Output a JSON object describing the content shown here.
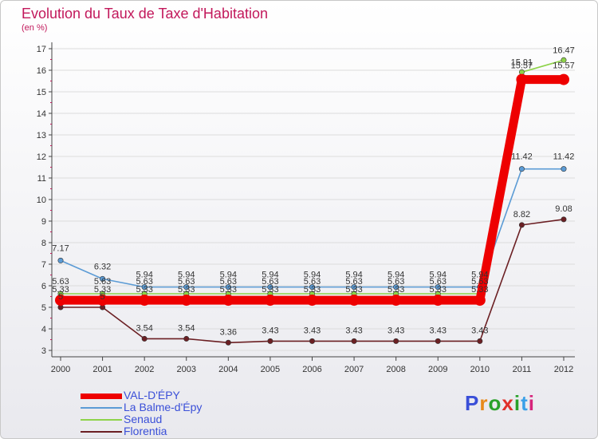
{
  "chart_data": {
    "type": "line",
    "title": "Evolution du Taux de Taxe d'Habitation",
    "subtitle": "(en %)",
    "categories": [
      "2000",
      "2001",
      "2002",
      "2003",
      "2004",
      "2005",
      "2006",
      "2007",
      "2008",
      "2009",
      "2010",
      "2011",
      "2012"
    ],
    "ylim": [
      3,
      17
    ],
    "yticks": [
      "3",
      "4",
      "5",
      "6",
      "7",
      "8",
      "9",
      "10",
      "11",
      "12",
      "13",
      "14",
      "15",
      "16",
      "17"
    ],
    "series": [
      {
        "name": "VAL-D'ÉPY",
        "color": "#ee0000",
        "values": [
          5.33,
          5.33,
          5.33,
          5.33,
          5.33,
          5.33,
          5.33,
          5.33,
          5.33,
          5.33,
          5.33,
          15.57,
          15.57
        ],
        "labels": [
          "5.33",
          "5.33",
          "5.33",
          "5.33",
          "5.33",
          "5.33",
          "5.33",
          "5.33",
          "5.33",
          "5.33",
          "5.33",
          "15.57",
          "15.57"
        ]
      },
      {
        "name": "La Balme-d'Épy",
        "color": "#5b9bd5",
        "values": [
          7.17,
          6.32,
          5.94,
          5.94,
          5.94,
          5.94,
          5.94,
          5.94,
          5.94,
          5.94,
          5.94,
          11.42,
          11.42
        ],
        "labels": [
          "7.17",
          "6.32",
          "5.94",
          "5.94",
          "5.94",
          "5.94",
          "5.94",
          "5.94",
          "5.94",
          "5.94",
          "5.94",
          "11.42",
          "11.42"
        ]
      },
      {
        "name": "Senaud",
        "color": "#8ed34a",
        "values": [
          5.63,
          5.63,
          5.63,
          5.63,
          5.63,
          5.63,
          5.63,
          5.63,
          5.63,
          5.63,
          5.63,
          15.91,
          16.47
        ],
        "labels": [
          "5.63",
          "5.63",
          "5.63",
          "5.63",
          "5.63",
          "5.63",
          "5.63",
          "5.63",
          "5.63",
          "5.63",
          "5.63",
          "15.91",
          "16.47"
        ]
      },
      {
        "name": "Florentia",
        "color": "#6b1f23",
        "values": [
          5.0,
          5.0,
          3.54,
          3.54,
          3.36,
          3.43,
          3.43,
          3.43,
          3.43,
          3.43,
          3.43,
          8.82,
          9.08
        ],
        "labels": [
          "5",
          "5",
          "3.54",
          "3.54",
          "3.36",
          "3.43",
          "3.43",
          "3.43",
          "3.43",
          "3.43",
          "3.43",
          "8.82",
          "9.08"
        ]
      }
    ]
  },
  "brand": {
    "logo_text": "Proxiti"
  }
}
